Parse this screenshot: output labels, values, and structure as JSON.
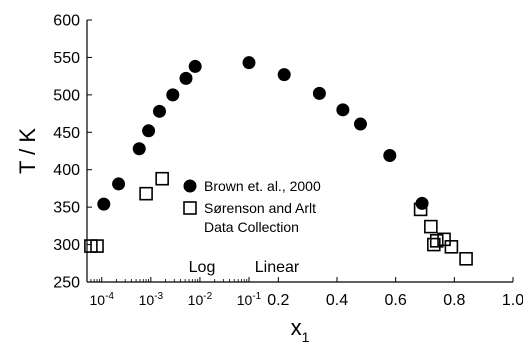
{
  "chart_data": {
    "type": "scatter",
    "xlabel": "x",
    "xlabel_subscript": "1",
    "ylabel": "T / K",
    "ylim": [
      250,
      600
    ],
    "yticks": [
      250,
      300,
      350,
      400,
      450,
      500,
      550,
      600
    ],
    "x_axis": {
      "segments": [
        {
          "scale": "log",
          "label": "Log",
          "range": [
            5e-05,
            0.1
          ]
        },
        {
          "scale": "linear",
          "label": "Linear",
          "range": [
            0.1,
            1.0
          ]
        }
      ],
      "ticks": [
        {
          "value": 0.0001,
          "base": "10",
          "exp": "-4"
        },
        {
          "value": 0.001,
          "base": "10",
          "exp": "-3"
        },
        {
          "value": 0.01,
          "base": "10",
          "exp": "-2"
        },
        {
          "value": 0.1,
          "base": "10",
          "exp": "-1"
        },
        {
          "value": 0.2,
          "text": "0.2"
        },
        {
          "value": 0.4,
          "text": "0.4"
        },
        {
          "value": 0.6,
          "text": "0.6"
        },
        {
          "value": 0.8,
          "text": "0.8"
        },
        {
          "value": 1.0,
          "text": "1.0"
        }
      ]
    },
    "legend": {
      "placement": "center",
      "entries": [
        {
          "marker": "filled-circle",
          "lines": [
            "Brown et. al., 2000"
          ]
        },
        {
          "marker": "open-square",
          "lines": [
            "Sørenson and Arlt",
            "Data Collection"
          ]
        }
      ]
    },
    "series": [
      {
        "name": "Brown et. al., 2000",
        "marker": "filled-circle",
        "points": [
          [
            0.00011,
            354
          ],
          [
            0.00022,
            381
          ],
          [
            0.00058,
            428
          ],
          [
            0.0009,
            452
          ],
          [
            0.0015,
            478
          ],
          [
            0.0028,
            500
          ],
          [
            0.0052,
            522
          ],
          [
            0.008,
            538
          ],
          [
            0.1,
            543
          ],
          [
            0.22,
            527
          ],
          [
            0.34,
            502
          ],
          [
            0.42,
            480
          ],
          [
            0.48,
            461
          ],
          [
            0.58,
            419
          ],
          [
            0.69,
            355
          ]
        ]
      },
      {
        "name": "Sørenson and Arlt Data Collection",
        "marker": "open-square",
        "points": [
          [
            6e-05,
            298
          ],
          [
            8e-05,
            298
          ],
          [
            0.0008,
            368
          ],
          [
            0.0017,
            388
          ],
          [
            0.685,
            347
          ],
          [
            0.72,
            324
          ],
          [
            0.73,
            300
          ],
          [
            0.74,
            305
          ],
          [
            0.765,
            307
          ],
          [
            0.79,
            297
          ],
          [
            0.84,
            281
          ]
        ]
      }
    ]
  }
}
